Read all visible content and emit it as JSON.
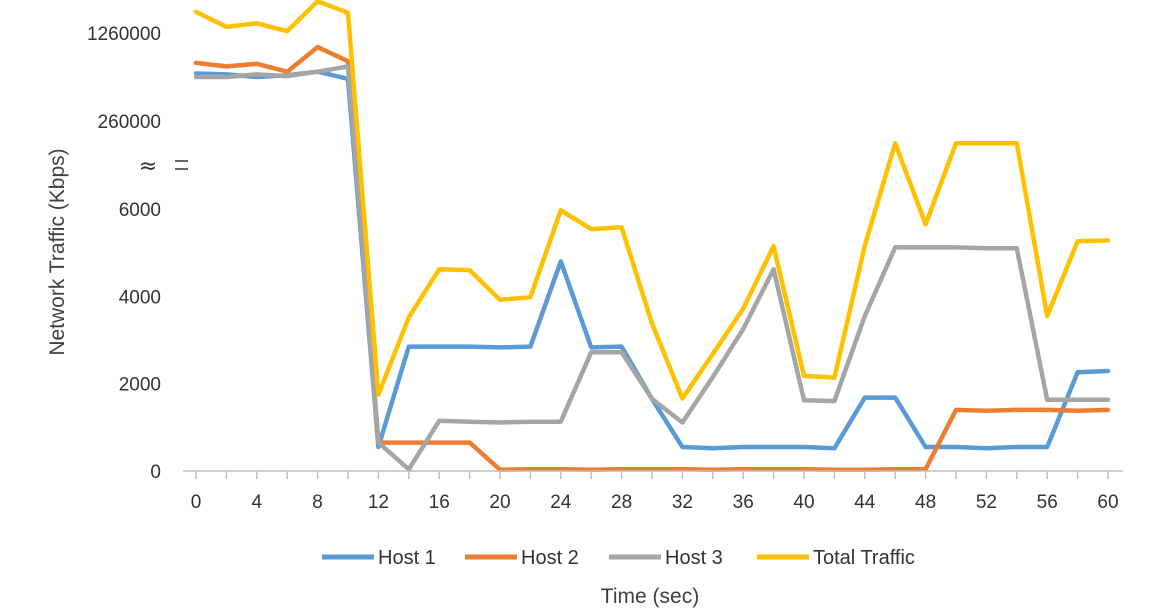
{
  "chart_data": {
    "type": "line",
    "xlabel": "Time (sec)",
    "ylabel": "Network Traffic (Kbps)",
    "x": [
      0,
      2,
      4,
      6,
      8,
      10,
      12,
      14,
      16,
      18,
      20,
      22,
      24,
      26,
      28,
      30,
      32,
      34,
      36,
      38,
      40,
      42,
      44,
      46,
      48,
      50,
      52,
      54,
      56,
      58,
      60
    ],
    "x_ticks": [
      0,
      4,
      8,
      12,
      16,
      20,
      24,
      28,
      32,
      36,
      40,
      44,
      48,
      52,
      56,
      60
    ],
    "y_scale": "broken",
    "y_axis_break": "≈",
    "y_ticks_lower": [
      0,
      2000,
      4000,
      6000
    ],
    "y_ticks_upper": [
      260000,
      1260000
    ],
    "lower_ylim": [
      0,
      6000
    ],
    "upper_ylim": [
      260000,
      1260000
    ],
    "grid": false,
    "legend_position": "bottom",
    "series": [
      {
        "name": "Host 1",
        "color": "#5B9BD5",
        "values": [
          800000,
          790000,
          760000,
          780000,
          820000,
          740000,
          550,
          2850,
          2850,
          2850,
          2830,
          2850,
          4800,
          2830,
          2850,
          1650,
          550,
          520,
          550,
          550,
          550,
          520,
          1680,
          1680,
          550,
          550,
          520,
          550,
          550,
          2260,
          2290
        ]
      },
      {
        "name": "Host 2",
        "color": "#ED7D31",
        "values": [
          920000,
          880000,
          910000,
          820000,
          1100000,
          940000,
          650,
          650,
          650,
          650,
          30,
          40,
          40,
          30,
          40,
          40,
          40,
          30,
          40,
          40,
          40,
          30,
          30,
          40,
          40,
          1400,
          1380,
          1400,
          1400,
          1380,
          1400
        ]
      },
      {
        "name": "Host 3",
        "color": "#A5A5A5",
        "values": [
          760000,
          760000,
          790000,
          770000,
          820000,
          880000,
          650,
          40,
          1150,
          1130,
          1110,
          1130,
          1130,
          2720,
          2720,
          1650,
          1110,
          2150,
          3250,
          4620,
          1620,
          1600,
          3550,
          5120,
          5120,
          5120,
          5100,
          5100,
          1630,
          1630,
          1630
        ]
      },
      {
        "name": "Total Traffic",
        "color": "#FFC000",
        "values": [
          1500000,
          1330000,
          1370000,
          1280000,
          1620000,
          1490000,
          1750,
          3520,
          4620,
          4600,
          3920,
          3980,
          5970,
          5540,
          5580,
          3380,
          1660,
          2680,
          3720,
          5150,
          2180,
          2140,
          5160,
          6830,
          5650,
          7090,
          7030,
          7070,
          3550,
          5260,
          5280
        ]
      }
    ]
  }
}
